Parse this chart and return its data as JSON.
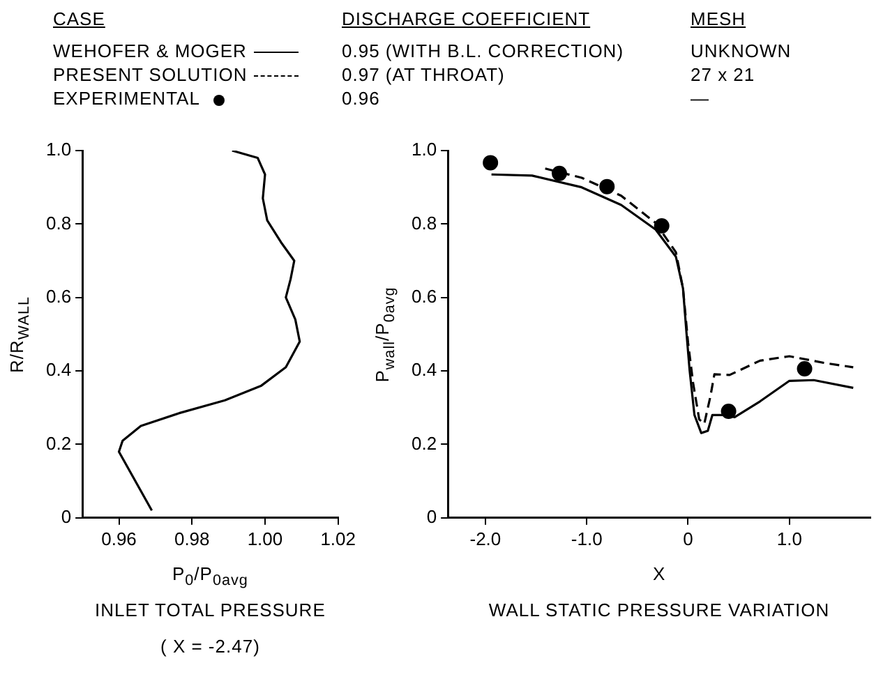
{
  "chart_data": [
    {
      "type": "line",
      "title": "INLET TOTAL PRESSURE",
      "subtitle": "( X = -2.47)",
      "xlabel": "P$_{0}$/P$_{0avg}$",
      "ylabel": "R/R$_{WALL}$",
      "xlim": [
        0.95,
        1.02
      ],
      "xticks": [
        0.96,
        0.98,
        {
          "value": 1,
          "label": "1.00"
        },
        1.02
      ],
      "ylim": [
        0,
        1
      ],
      "yticks": [
        0,
        0.2,
        0.4,
        0.6,
        0.8,
        {
          "value": 1,
          "label": "1.0"
        }
      ],
      "grid": false,
      "legend": false,
      "series": [
        {
          "color": "#000000",
          "x": [
            0.969,
            0.96,
            0.961,
            0.966,
            0.9765,
            0.989,
            0.999,
            1.0057,
            1.0095,
            1.0083,
            1.0057,
            1.007,
            1.008,
            1.0044,
            1.0006,
            0.9994,
            1.0,
            0.998,
            0.991
          ],
          "values": [
            0.02,
            0.18,
            0.21,
            0.25,
            0.285,
            0.32,
            0.36,
            0.41,
            0.48,
            0.54,
            0.6,
            0.65,
            0.7,
            0.75,
            0.81,
            0.87,
            0.935,
            0.98,
            1.0
          ]
        }
      ]
    },
    {
      "type": "line",
      "title": "WALL STATIC PRESSURE VARIATION",
      "xlabel": "X",
      "ylabel": "P$_{wall}$/P$_{0avg}$",
      "legend_title": "CASE",
      "xlim": [
        -2.37,
        1.8
      ],
      "xticks": [
        {
          "value": -2,
          "label": "-2.0"
        },
        {
          "value": -1,
          "label": "-1.0"
        },
        0,
        {
          "value": 1,
          "label": "1.0"
        }
      ],
      "ylim": [
        0,
        1
      ],
      "yticks": [
        0,
        0.2,
        0.4,
        0.6,
        0.8,
        {
          "value": 1,
          "label": "1.0"
        }
      ],
      "grid": false,
      "legend": "top",
      "annotations": [
        "DISCHARGE COEFFICIENT",
        "MESH",
        "0.95 (WITH B.L. CORRECTION)",
        "UNKNOWN",
        "0.97 (AT THROAT)",
        "27 x 21",
        "0.96",
        "—"
      ],
      "series": [
        {
          "name": "WEHOFER & MOGER",
          "type": "line",
          "line_style": "solid",
          "marker": "none",
          "color": "#000000",
          "x": [
            -1.94,
            -1.54,
            -1.05,
            -0.66,
            -0.32,
            -0.12,
            -0.05,
            -0.015,
            0.015,
            0.063,
            0.13,
            0.195,
            0.24,
            0.37,
            0.46,
            0.71,
            1.0,
            1.24,
            1.63
          ],
          "values": [
            0.935,
            0.932,
            0.9,
            0.852,
            0.785,
            0.711,
            0.625,
            0.502,
            0.403,
            0.28,
            0.231,
            0.237,
            0.28,
            0.28,
            0.274,
            0.317,
            0.373,
            0.375,
            0.354
          ]
        },
        {
          "name": "PRESENT SOLUTION",
          "type": "line",
          "line_style": "dashed",
          "marker": "none",
          "color": "#000000",
          "x": [
            -1.41,
            -1.05,
            -0.66,
            -0.32,
            -0.12,
            -0.05,
            0.0,
            0.05,
            0.11,
            0.16,
            0.22,
            0.26,
            0.41,
            0.71,
            1.0,
            1.34,
            1.63
          ],
          "values": [
            0.951,
            0.926,
            0.877,
            0.803,
            0.723,
            0.625,
            0.477,
            0.367,
            0.268,
            0.256,
            0.33,
            0.391,
            0.389,
            0.428,
            0.44,
            0.422,
            0.41
          ]
        },
        {
          "name": "EXPERIMENTAL",
          "type": "scatter",
          "marker": "circle",
          "color": "#000000",
          "x": [
            -1.95,
            -1.27,
            -0.8,
            -0.26,
            0.4,
            1.15
          ],
          "values": [
            0.967,
            0.938,
            0.902,
            0.795,
            0.29,
            0.406
          ]
        }
      ]
    }
  ]
}
